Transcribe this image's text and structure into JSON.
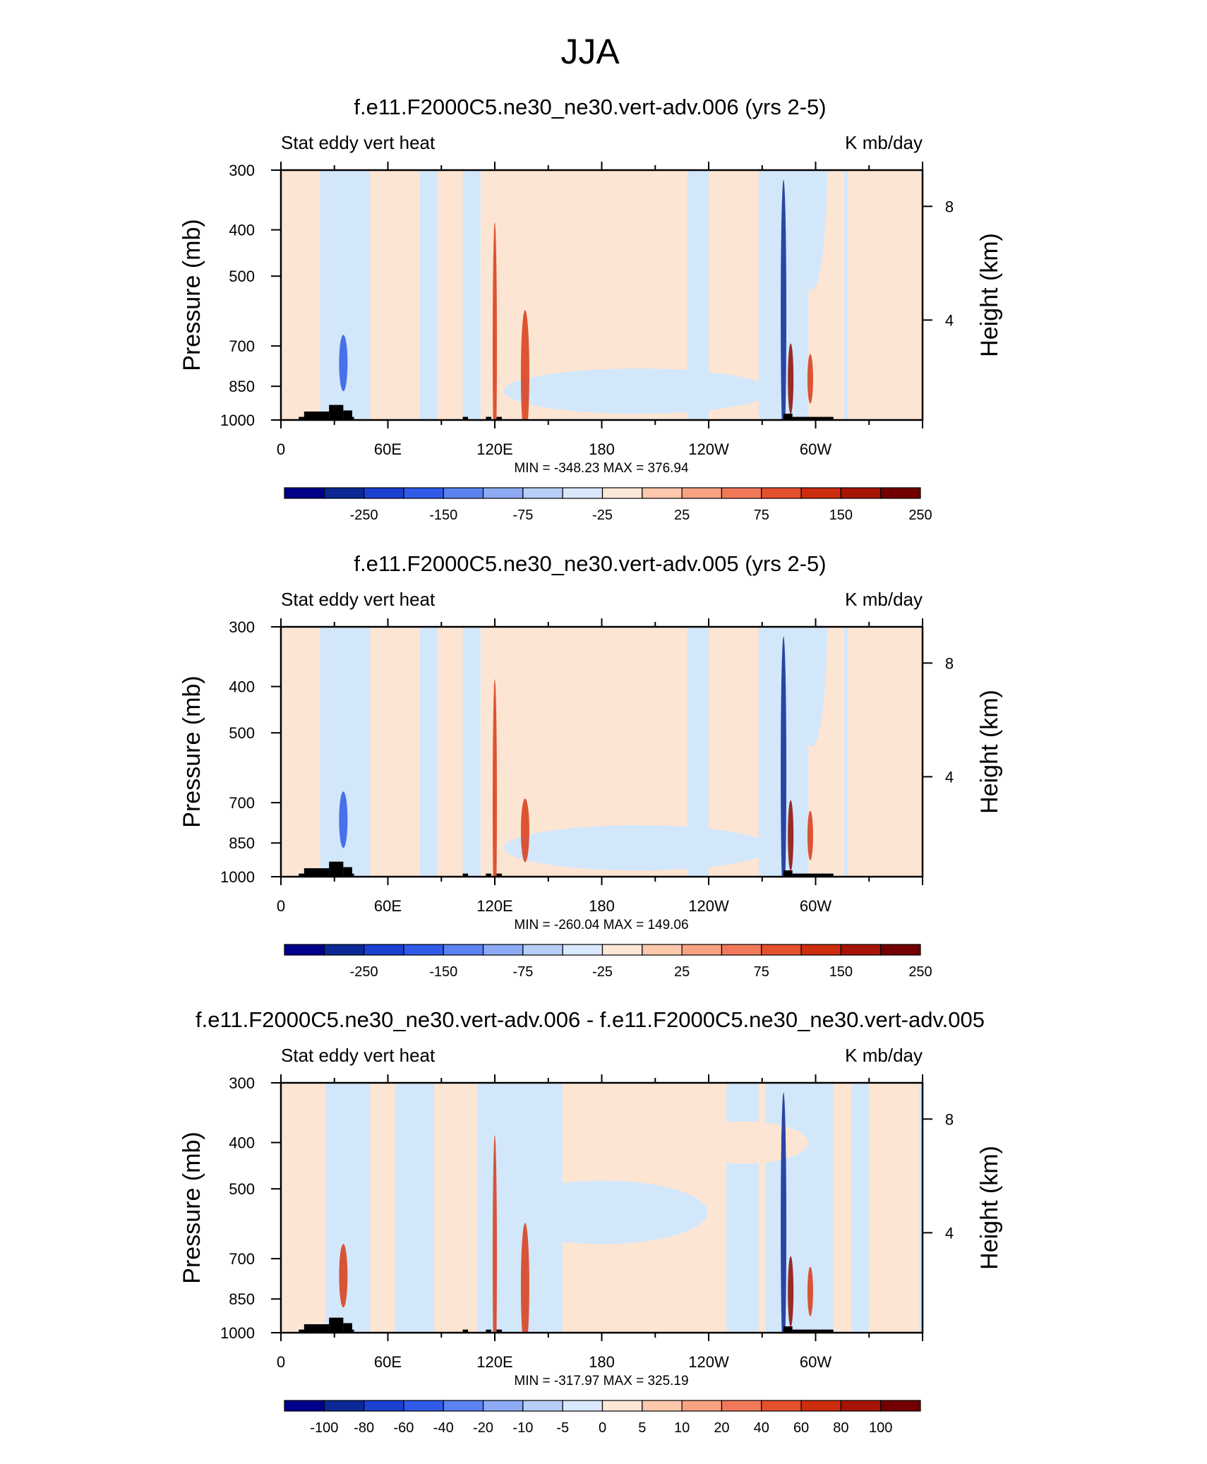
{
  "figure": {
    "title": "JJA"
  },
  "colors": {
    "band_blue_dark": "#0b2896",
    "band_blue": "#2f5be8",
    "band_red": "#d83a14",
    "band_red_dark": "#8a0b00",
    "negative_background": "#d3e7fb",
    "positive_background": "#fde5d3",
    "topography": "#000000"
  },
  "chart_data": [
    {
      "type": "heatmap",
      "title": "f.e11.F2000C5.ne30_ne30.vert-adv.006 (yrs 2-5)",
      "left_label": "Stat eddy vert heat",
      "right_label": "K mb/day",
      "ylabel": "Pressure (mb)",
      "ylabel_right": "Height (km)",
      "x_ticks": [
        "0",
        "60E",
        "120E",
        "180",
        "120W",
        "60W"
      ],
      "x_range": [
        0,
        360
      ],
      "y_ticks": [
        "300",
        "400",
        "500",
        "700",
        "850",
        "1000"
      ],
      "y_range": [
        1000,
        300
      ],
      "height_ticks": [
        "4",
        "8"
      ],
      "stats": "MIN = -348.23  MAX = 376.94",
      "colorbar_labels": [
        "-250",
        "-150",
        "-75",
        "-25",
        "25",
        "75",
        "150",
        "250"
      ],
      "colorbar_colors": [
        "#00008b",
        "#0b2896",
        "#1b3fcf",
        "#2f5be8",
        "#5a82f0",
        "#8daaf4",
        "#b7cff8",
        "#d9e8fc",
        "#fde8d8",
        "#fcc9ad",
        "#f9a183",
        "#f2785a",
        "#e5502e",
        "#cc2d0e",
        "#a51405",
        "#720000"
      ]
    },
    {
      "type": "heatmap",
      "title": "f.e11.F2000C5.ne30_ne30.vert-adv.005 (yrs 2-5)",
      "left_label": "Stat eddy vert heat",
      "right_label": "K mb/day",
      "ylabel": "Pressure (mb)",
      "ylabel_right": "Height (km)",
      "x_ticks": [
        "0",
        "60E",
        "120E",
        "180",
        "120W",
        "60W"
      ],
      "x_range": [
        0,
        360
      ],
      "y_ticks": [
        "300",
        "400",
        "500",
        "700",
        "850",
        "1000"
      ],
      "y_range": [
        1000,
        300
      ],
      "height_ticks": [
        "4",
        "8"
      ],
      "stats": "MIN = -260.04  MAX = 149.06",
      "colorbar_labels": [
        "-250",
        "-150",
        "-75",
        "-25",
        "25",
        "75",
        "150",
        "250"
      ],
      "colorbar_colors": [
        "#00008b",
        "#0b2896",
        "#1b3fcf",
        "#2f5be8",
        "#5a82f0",
        "#8daaf4",
        "#b7cff8",
        "#d9e8fc",
        "#fde8d8",
        "#fcc9ad",
        "#f9a183",
        "#f2785a",
        "#e5502e",
        "#cc2d0e",
        "#a51405",
        "#720000"
      ]
    },
    {
      "type": "heatmap",
      "title": "f.e11.F2000C5.ne30_ne30.vert-adv.006 - f.e11.F2000C5.ne30_ne30.vert-adv.005",
      "left_label": "Stat eddy vert heat",
      "right_label": "K mb/day",
      "ylabel": "Pressure (mb)",
      "ylabel_right": "Height (km)",
      "x_ticks": [
        "0",
        "60E",
        "120E",
        "180",
        "120W",
        "60W"
      ],
      "x_range": [
        0,
        360
      ],
      "y_ticks": [
        "300",
        "400",
        "500",
        "700",
        "850",
        "1000"
      ],
      "y_range": [
        1000,
        300
      ],
      "height_ticks": [
        "4",
        "8"
      ],
      "stats": "MIN = -317.97  MAX = 325.19",
      "colorbar_labels": [
        "-100",
        "-80",
        "-60",
        "-40",
        "-20",
        "-10",
        "-5",
        "0",
        "5",
        "10",
        "20",
        "40",
        "60",
        "80",
        "100"
      ],
      "colorbar_colors": [
        "#00008b",
        "#0b2896",
        "#1b3fcf",
        "#2f5be8",
        "#5a82f0",
        "#8daaf4",
        "#b7cff8",
        "#d9e8fc",
        "#fde8d8",
        "#fcc9ad",
        "#f9a183",
        "#f2785a",
        "#e5502e",
        "#cc2d0e",
        "#a51405",
        "#720000"
      ]
    }
  ]
}
